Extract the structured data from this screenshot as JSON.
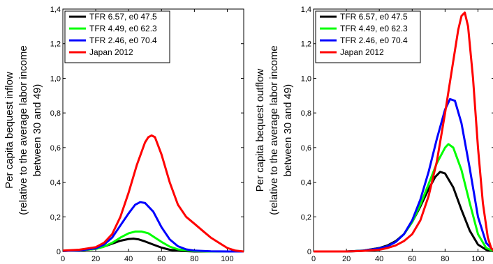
{
  "chart_data": [
    {
      "type": "line",
      "title": "",
      "xlabel": "",
      "ylabel": "Per capita bequest inflow",
      "ylabel_lines": [
        "Per capita bequest inflow",
        "(relative to the average labor income",
        "between 30 and 49)"
      ],
      "xlim": [
        0,
        110
      ],
      "ylim": [
        0,
        1.4
      ],
      "xticks": [
        "0",
        "20",
        "40",
        "60",
        "80",
        "100"
      ],
      "yticks": [
        "0",
        "0,2",
        "0,4",
        "0,6",
        "0,8",
        "1,0",
        "1,2",
        "1,4"
      ],
      "grid": false,
      "legend_position": "top-left",
      "series": [
        {
          "name": "TFR 6.57, e0 47.5",
          "color": "#000000",
          "x": [
            0,
            10,
            20,
            25,
            30,
            35,
            40,
            43,
            46,
            50,
            55,
            60,
            65,
            70,
            80,
            90,
            100,
            110
          ],
          "y": [
            0.003,
            0.006,
            0.015,
            0.028,
            0.045,
            0.062,
            0.072,
            0.074,
            0.07,
            0.058,
            0.04,
            0.022,
            0.01,
            0.004,
            0.0,
            0.0,
            0.0,
            0.0
          ]
        },
        {
          "name": "TFR 4.49, e0 62.3",
          "color": "#00ff00",
          "x": [
            0,
            10,
            20,
            25,
            30,
            35,
            40,
            44,
            48,
            52,
            56,
            60,
            65,
            70,
            80,
            90,
            100,
            110
          ],
          "y": [
            0.003,
            0.006,
            0.015,
            0.028,
            0.05,
            0.08,
            0.105,
            0.115,
            0.115,
            0.105,
            0.08,
            0.055,
            0.028,
            0.012,
            0.002,
            0.0,
            0.0,
            0.0
          ]
        },
        {
          "name": "TFR 2.46, e0 70.4",
          "color": "#0000ff",
          "x": [
            0,
            10,
            20,
            25,
            30,
            35,
            40,
            44,
            47,
            50,
            55,
            60,
            65,
            70,
            75,
            80,
            90,
            100,
            110
          ],
          "y": [
            0.003,
            0.006,
            0.018,
            0.04,
            0.08,
            0.15,
            0.22,
            0.27,
            0.285,
            0.28,
            0.23,
            0.14,
            0.07,
            0.03,
            0.012,
            0.005,
            0.001,
            0.0,
            0.0
          ]
        },
        {
          "name": "Japan 2012",
          "color": "#ff0000",
          "x": [
            0,
            10,
            20,
            25,
            30,
            35,
            40,
            45,
            50,
            52,
            54,
            56,
            60,
            65,
            70,
            75,
            80,
            85,
            90,
            95,
            100,
            105,
            110
          ],
          "y": [
            0.005,
            0.01,
            0.025,
            0.05,
            0.1,
            0.2,
            0.34,
            0.5,
            0.63,
            0.66,
            0.67,
            0.66,
            0.56,
            0.4,
            0.27,
            0.2,
            0.16,
            0.12,
            0.08,
            0.05,
            0.02,
            0.005,
            0.0
          ]
        }
      ]
    },
    {
      "type": "line",
      "title": "",
      "xlabel": "",
      "ylabel": "Per capita bequest outflow",
      "ylabel_lines": [
        "Per capita bequest outflow",
        "(relative to the average labor income",
        "between 30 and 49)"
      ],
      "xlim": [
        0,
        110
      ],
      "ylim": [
        0,
        1.4
      ],
      "xticks": [
        "0",
        "20",
        "40",
        "60",
        "80",
        "100"
      ],
      "yticks": [
        "0",
        "0,2",
        "0,4",
        "0,6",
        "0,8",
        "1,0",
        "1,2",
        "1,4"
      ],
      "grid": false,
      "legend_position": "top-left",
      "series": [
        {
          "name": "TFR 6.57, e0 47.5",
          "color": "#000000",
          "x": [
            0,
            20,
            30,
            40,
            45,
            50,
            55,
            60,
            65,
            70,
            74,
            77,
            80,
            85,
            90,
            95,
            100,
            105,
            110
          ],
          "y": [
            0.0,
            0.0,
            0.005,
            0.02,
            0.035,
            0.06,
            0.1,
            0.17,
            0.26,
            0.36,
            0.43,
            0.46,
            0.45,
            0.37,
            0.24,
            0.12,
            0.04,
            0.01,
            0.0
          ]
        },
        {
          "name": "TFR 4.49, e0 62.3",
          "color": "#00ff00",
          "x": [
            0,
            20,
            30,
            40,
            45,
            50,
            55,
            60,
            65,
            70,
            75,
            80,
            82,
            85,
            90,
            95,
            100,
            105,
            110
          ],
          "y": [
            0.0,
            0.0,
            0.004,
            0.018,
            0.03,
            0.055,
            0.1,
            0.17,
            0.27,
            0.39,
            0.51,
            0.6,
            0.62,
            0.6,
            0.47,
            0.28,
            0.1,
            0.02,
            0.0
          ]
        },
        {
          "name": "TFR 2.46, e0 70.4",
          "color": "#0000ff",
          "x": [
            0,
            20,
            30,
            40,
            45,
            50,
            55,
            60,
            65,
            70,
            75,
            80,
            83,
            86,
            90,
            95,
            100,
            105,
            110
          ],
          "y": [
            0.0,
            0.0,
            0.004,
            0.018,
            0.03,
            0.055,
            0.1,
            0.18,
            0.3,
            0.46,
            0.65,
            0.82,
            0.88,
            0.87,
            0.74,
            0.48,
            0.2,
            0.05,
            0.0
          ]
        },
        {
          "name": "Japan 2012",
          "color": "#ff0000",
          "x": [
            0,
            20,
            30,
            40,
            45,
            50,
            55,
            60,
            65,
            70,
            75,
            80,
            85,
            88,
            90,
            92,
            94,
            97,
            100,
            103,
            106,
            108,
            110
          ],
          "y": [
            0.0,
            0.0,
            0.003,
            0.01,
            0.02,
            0.035,
            0.06,
            0.1,
            0.18,
            0.32,
            0.52,
            0.8,
            1.1,
            1.28,
            1.36,
            1.38,
            1.3,
            1.0,
            0.6,
            0.28,
            0.08,
            0.02,
            0.0
          ]
        }
      ]
    }
  ]
}
